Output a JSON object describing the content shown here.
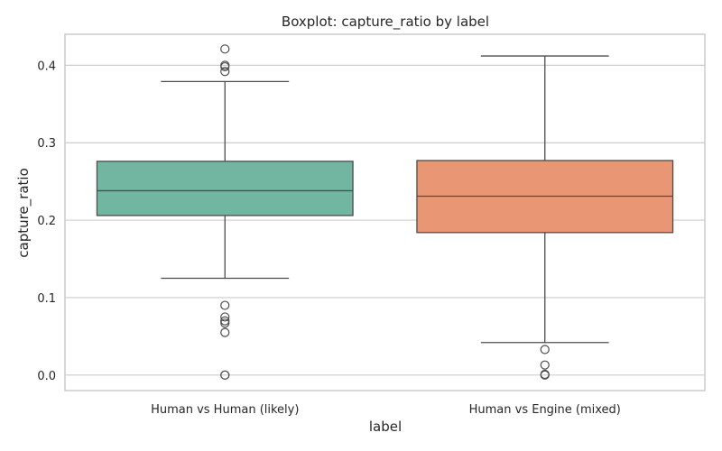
{
  "chart_data": {
    "type": "box",
    "title": "Boxplot: capture_ratio by label",
    "xlabel": "label",
    "ylabel": "capture_ratio",
    "ylim": [
      -0.02,
      0.44
    ],
    "yticks": [
      0.0,
      0.1,
      0.2,
      0.3,
      0.4
    ],
    "ytick_labels": [
      "0.0",
      "0.1",
      "0.2",
      "0.3",
      "0.4"
    ],
    "grid": "horizontal",
    "categories": [
      "Human vs Human (likely)",
      "Human vs Engine (mixed)"
    ],
    "boxes": [
      {
        "category": "Human vs Human (likely)",
        "color": "#72b6a1",
        "whisker_low": 0.125,
        "q1": 0.206,
        "median": 0.238,
        "q3": 0.276,
        "whisker_high": 0.379,
        "outliers": [
          0.421,
          0.4,
          0.398,
          0.392,
          0.09,
          0.075,
          0.07,
          0.067,
          0.055,
          0.0,
          0.0
        ]
      },
      {
        "category": "Human vs Engine (mixed)",
        "color": "#e99675",
        "whisker_low": 0.042,
        "q1": 0.184,
        "median": 0.231,
        "q3": 0.277,
        "whisker_high": 0.412,
        "outliers": [
          0.033,
          0.013,
          0.001,
          0.0
        ]
      }
    ],
    "style": {
      "line_color": "#4d4d4d",
      "grid_color": "#cccccc",
      "frame_color": "#cccccc"
    }
  }
}
